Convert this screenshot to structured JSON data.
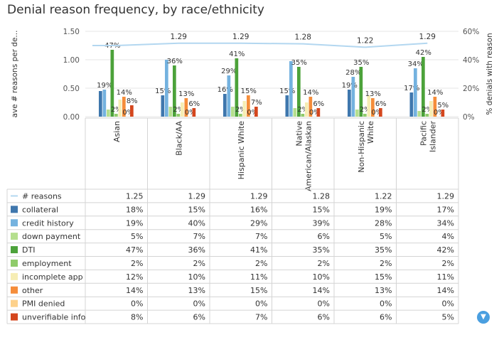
{
  "title": "Denial reason frequency, by race/ethnicity",
  "filter_icon": "filter-icon",
  "chart_data": {
    "type": "bar",
    "categories": [
      "Asian",
      "Black/AA",
      "Hispanic White",
      "Native American/Alaskan",
      "Non-Hispanic White",
      "Pacific Islander"
    ],
    "ylabel_left": "ave # reasons per de...",
    "ylabel_right": "% denials with reason",
    "ylim_left": [
      0,
      1.5
    ],
    "yticks_left": [
      "0.00",
      "0.50",
      "1.00",
      "1.50"
    ],
    "ylim_right": [
      0,
      60
    ],
    "yticks_right": [
      "0%",
      "20%",
      "40%",
      "60%"
    ],
    "line_series": {
      "name": "# reasons",
      "color": "#b3d7f0",
      "values": [
        1.25,
        1.29,
        1.29,
        1.28,
        1.22,
        1.29
      ],
      "labels": [
        "",
        "1.29",
        "1.29",
        "1.28",
        "1.22",
        "1.29"
      ],
      "table": [
        "1.25",
        "1.29",
        "1.29",
        "1.28",
        "1.22",
        "1.29"
      ]
    },
    "series": [
      {
        "name": "collateral",
        "color": "#3f77ad",
        "values": [
          18,
          15,
          16,
          15,
          19,
          17
        ],
        "labels": [
          "",
          "15%",
          "16%",
          "15%",
          "19%",
          "17%"
        ]
      },
      {
        "name": "credit history",
        "color": "#74b2df",
        "values": [
          19,
          40,
          29,
          39,
          28,
          34
        ],
        "labels": [
          "19%",
          "",
          "29%",
          "",
          "28%",
          "34%"
        ]
      },
      {
        "name": "down payment",
        "color": "#b5df8e",
        "values": [
          5,
          7,
          7,
          6,
          5,
          4
        ],
        "labels": [
          "",
          "",
          "",
          "",
          "",
          ""
        ]
      },
      {
        "name": "DTI",
        "color": "#4ca23a",
        "values": [
          47,
          36,
          41,
          35,
          35,
          42
        ],
        "labels": [
          "47%",
          "36%",
          "41%",
          "35%",
          "35%",
          "42%"
        ]
      },
      {
        "name": "employment",
        "color": "#8fcb6a",
        "values": [
          2,
          2,
          2,
          2,
          2,
          2
        ],
        "labels": [
          "2%",
          "2%",
          "2%",
          "2%",
          "2%",
          "2%"
        ]
      },
      {
        "name": "incomplete app",
        "color": "#f6edb4",
        "values": [
          12,
          10,
          11,
          10,
          15,
          11
        ],
        "labels": [
          "",
          "",
          "",
          "",
          "",
          ""
        ]
      },
      {
        "name": "other",
        "color": "#f58d3a",
        "values": [
          14,
          13,
          15,
          14,
          13,
          14
        ],
        "labels": [
          "14%",
          "13%",
          "15%",
          "14%",
          "13%",
          "14%"
        ]
      },
      {
        "name": "PMI denied",
        "color": "#fdd18b",
        "values": [
          0,
          0,
          0,
          0,
          0,
          0
        ],
        "labels": [
          "0%",
          "0%",
          "0%",
          "0%",
          "0%",
          "0%"
        ]
      },
      {
        "name": "unverifiable info",
        "color": "#d4461d",
        "values": [
          8,
          6,
          7,
          6,
          6,
          5
        ],
        "labels": [
          "8%",
          "6%",
          "7%",
          "6%",
          "6%",
          "5%"
        ]
      }
    ]
  }
}
